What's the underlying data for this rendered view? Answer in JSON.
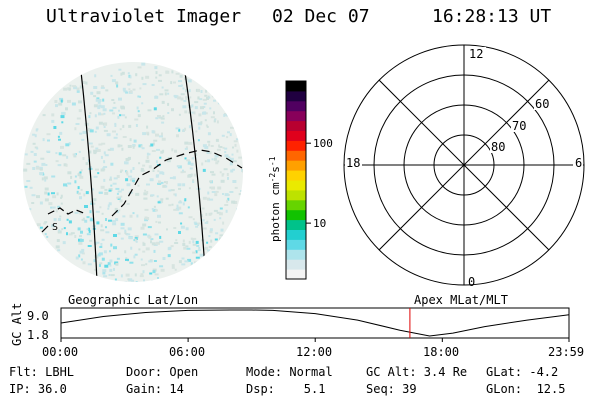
{
  "header": {
    "instrument": "Ultraviolet Imager",
    "date": "02 Dec 07",
    "time": "16:28:13 UT"
  },
  "colorbar": {
    "unit_label": "photon cm",
    "unit_exp1": "-2",
    "unit_mid": "s",
    "unit_exp2": "-1",
    "ticks": [
      {
        "value": 100,
        "label": "100"
      },
      {
        "value": 10,
        "label": "10"
      }
    ],
    "colors": [
      "#f4f4f4",
      "#d8e8ec",
      "#aee4ec",
      "#5fd9e6",
      "#22cfd0",
      "#00c28a",
      "#11c200",
      "#66d400",
      "#bde200",
      "#eaea00",
      "#ffd200",
      "#ffa000",
      "#ff6600",
      "#ff2200",
      "#e0001c",
      "#b80030",
      "#88005a",
      "#500060",
      "#200040",
      "#000000"
    ]
  },
  "polar_plot": {
    "ring_labels": [
      "60",
      "70",
      "80"
    ],
    "mlt_labels": {
      "top": "12",
      "left": "18",
      "right": "6",
      "bottom": "0"
    }
  },
  "image_panel": {
    "label": "S"
  },
  "timeline": {
    "left_title": "Geographic Lat/Lon",
    "right_title": "Apex MLat/MLT",
    "ylabel": "GC Alt",
    "y_ticks": [
      "9.0",
      "1.8"
    ],
    "x_ticks": [
      "00:00",
      "06:00",
      "12:00",
      "18:00",
      "23:59"
    ],
    "current_time_hours": 16.47
  },
  "chart_data": {
    "type": "line",
    "title": "",
    "xlabel": "",
    "ylabel": "GC Alt",
    "x_hours": [
      0,
      2,
      4,
      6,
      8,
      9,
      10,
      12,
      14,
      16,
      17.4,
      18.5,
      20,
      22,
      23.98
    ],
    "y_values": [
      5.4,
      7.2,
      8.3,
      8.9,
      9.0,
      9.0,
      8.9,
      8.0,
      6.2,
      3.4,
      1.8,
      2.6,
      4.4,
      6.2,
      7.7
    ],
    "ylim": [
      1.8,
      9.0
    ]
  },
  "footer": {
    "rows": [
      [
        "Flt: LBHL",
        "Door: Open",
        "Mode: Normal",
        "GC Alt: 3.4 Re",
        "GLat: -4.2"
      ],
      [
        "IP: 36.0",
        "Gain: 14",
        "Dsp:    5.1",
        "Seq: 39",
        "GLon:  12.5"
      ]
    ]
  }
}
